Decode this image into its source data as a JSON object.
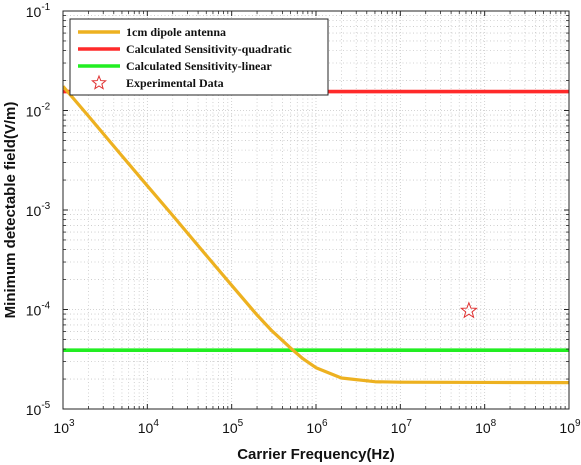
{
  "chart_data": {
    "type": "line",
    "title": "",
    "xlabel": "Carrier Frequency(Hz)",
    "ylabel": "Minimum detectable field(V/m)",
    "xscale": "log",
    "yscale": "log",
    "xlim": [
      1000,
      1000000000
    ],
    "ylim": [
      1e-05,
      0.1
    ],
    "grid": "on (major and minor, dotted)",
    "legend_position": "top-left",
    "x_ticks": [
      {
        "base": "10",
        "exp": "3"
      },
      {
        "base": "10",
        "exp": "4"
      },
      {
        "base": "10",
        "exp": "5"
      },
      {
        "base": "10",
        "exp": "6"
      },
      {
        "base": "10",
        "exp": "7"
      },
      {
        "base": "10",
        "exp": "8"
      },
      {
        "base": "10",
        "exp": "9"
      }
    ],
    "y_ticks": [
      {
        "base": "10",
        "exp": "-5"
      },
      {
        "base": "10",
        "exp": "-4"
      },
      {
        "base": "10",
        "exp": "-3"
      },
      {
        "base": "10",
        "exp": "-2"
      },
      {
        "base": "10",
        "exp": "-1"
      }
    ],
    "series": [
      {
        "name": "1cm dipole antenna",
        "color": "#EDB120",
        "style": "line",
        "x": [
          1000,
          2000,
          5000,
          10000,
          20000,
          50000,
          100000,
          200000,
          300000,
          500000,
          700000,
          1000000,
          2000000,
          5000000,
          10000000,
          100000000,
          1000000000
        ],
        "y": [
          0.0175,
          0.0088,
          0.0035,
          0.00175,
          0.00088,
          0.00035,
          0.000175,
          8.8e-05,
          6.1e-05,
          4.1e-05,
          3.2e-05,
          2.6e-05,
          2.05e-05,
          1.88e-05,
          1.86e-05,
          1.85e-05,
          1.84e-05
        ]
      },
      {
        "name": "Calculated Sensitivity-quadratic",
        "color": "#FF2A2A",
        "style": "line",
        "x": [
          1000,
          1000000000
        ],
        "y": [
          0.0155,
          0.0155
        ]
      },
      {
        "name": "Calculated Sensitivity-linear",
        "color": "#22EE22",
        "style": "line",
        "x": [
          1000,
          1000000000
        ],
        "y": [
          3.9e-05,
          3.9e-05
        ]
      },
      {
        "name": "Experimental Data",
        "color": "#E03030",
        "style": "star-marker",
        "x": [
          65000000
        ],
        "y": [
          9.7e-05
        ]
      }
    ]
  }
}
